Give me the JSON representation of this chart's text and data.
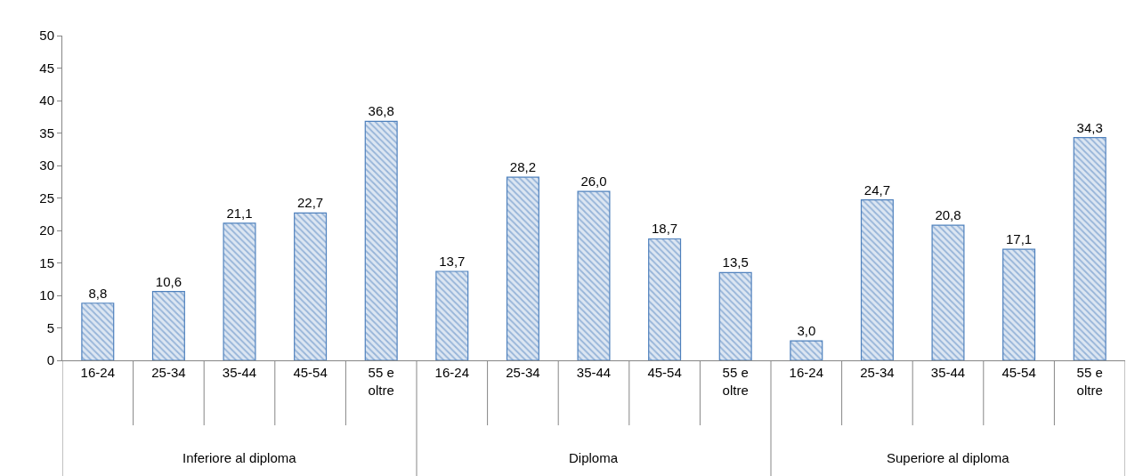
{
  "chart_data": {
    "type": "bar",
    "categories": [
      "16-24",
      "25-34",
      "35-44",
      "45-54",
      "55 e oltre",
      "16-24",
      "25-34",
      "35-44",
      "45-54",
      "55 e oltre",
      "16-24",
      "25-34",
      "35-44",
      "45-54",
      "55 e oltre"
    ],
    "values": [
      8.8,
      10.6,
      21.1,
      22.7,
      36.8,
      13.7,
      28.2,
      26.0,
      18.7,
      13.5,
      3.0,
      24.7,
      20.8,
      17.1,
      34.3
    ],
    "color": "#4f81bd",
    "ylim": [
      0,
      50
    ],
    "yticks": [
      0,
      5,
      10,
      15,
      20,
      25,
      30,
      35,
      40,
      45,
      50
    ],
    "value_labels": [
      "8,8",
      "10,6",
      "21,1",
      "22,7",
      "36,8",
      "13,7",
      "28,2",
      "26,0",
      "18,7",
      "13,5",
      "3,0",
      "24,7",
      "20,8",
      "17,1",
      "34,3"
    ],
    "annotations": [
      "Inferiore al diploma",
      "Diploma",
      "Superiore al diploma"
    ]
  }
}
